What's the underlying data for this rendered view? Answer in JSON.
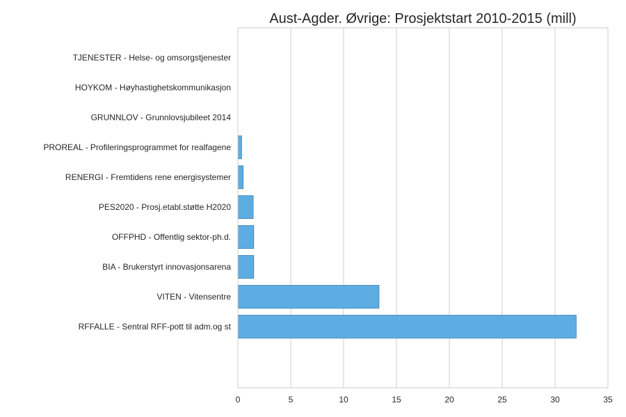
{
  "chart_data": {
    "type": "bar",
    "orientation": "horizontal",
    "title": "Aust-Agder. Øvrige: Prosjektstart 2010-2015 (mill)",
    "xlabel": "",
    "ylabel": "",
    "xlim": [
      0,
      35
    ],
    "xticks": [
      0,
      5,
      10,
      15,
      20,
      25,
      30,
      35
    ],
    "grid": true,
    "bar_color": "#5DADE2",
    "bar_edge_color": "#3a7fb5",
    "categories": [
      "TJENESTER - Helse- og omsorgstjenester",
      "HOYKOM - Høyhastighetskommunikasjon",
      "GRUNNLOV - Grunnlovsjubileet 2014",
      "PROREAL - Profileringsprogrammet for realfagene",
      "RENERGI - Fremtidens rene energisystemer",
      "PES2020 - Prosj.etabl.støtte H2020",
      "OFFPHD - Offentlig sektor-ph.d.",
      "BIA - Brukerstyrt innovasjonsarena",
      "VITEN - Vitensentre",
      "RFFALLE - Sentral RFF-pott til adm.og st"
    ],
    "values": [
      0,
      0,
      0,
      0.35,
      0.5,
      1.45,
      1.5,
      1.5,
      13.35,
      32.0
    ]
  }
}
